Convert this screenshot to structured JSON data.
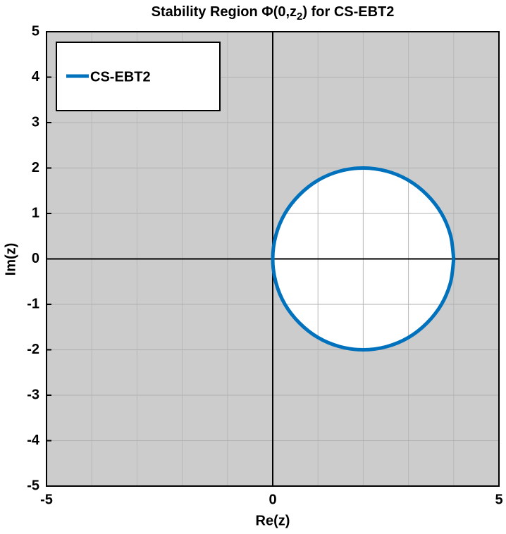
{
  "chart_data": {
    "type": "line",
    "title": [
      "Stability Region Φ(0,z",
      "2",
      ") for CS-EBT2"
    ],
    "xlabel": "Re(z)",
    "ylabel": "Im(z)",
    "series": [
      {
        "name": "CS-EBT2",
        "color": "#0072bd",
        "x": [
          4,
          3.93,
          3.73,
          3.41,
          3,
          2.52,
          2,
          1.48,
          1,
          0.59,
          0.27,
          0.07,
          0,
          0.07,
          0.27,
          0.59,
          1,
          1.48,
          2,
          2.52,
          3,
          3.41,
          3.73,
          3.93,
          4
        ],
        "values": [
          0,
          0.52,
          1,
          1.41,
          1.73,
          1.93,
          2,
          1.93,
          1.73,
          1.41,
          1,
          0.52,
          0,
          -0.52,
          -1,
          -1.41,
          -1.73,
          -1.93,
          -2,
          -1.93,
          -1.73,
          -1.41,
          -1,
          -0.52,
          0
        ]
      }
    ],
    "xlim": [
      -5,
      5
    ],
    "ylim": [
      -5,
      5
    ],
    "xticks": [
      -5,
      0,
      5
    ],
    "yticks": [
      -5,
      -4,
      -3,
      -2,
      -1,
      0,
      1,
      2,
      3,
      4,
      5
    ],
    "xminorticks": [
      -4,
      -3,
      -2,
      -1,
      1,
      2,
      3,
      4
    ],
    "grid": true,
    "background": "#cccccc",
    "region_fill": "#ffffff",
    "origin_axes": true,
    "legend": "upper left"
  }
}
